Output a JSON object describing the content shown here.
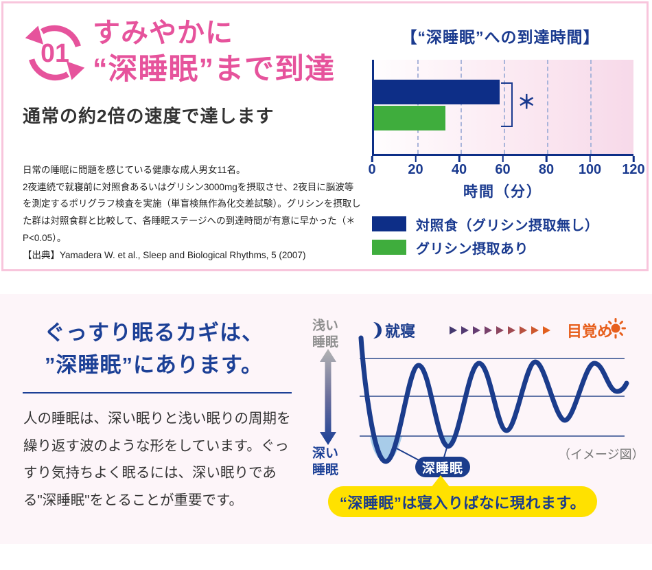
{
  "colors": {
    "pink": "#e6539c",
    "pink_border": "#f8c5dc",
    "navy": "#1a3a8f",
    "bar_navy": "#0d2e87",
    "wave_navy": "#1b3c8c",
    "green": "#3fad3d",
    "orange": "#e75f1d",
    "yellow": "#ffe100",
    "band_bg": "#fdf5f9",
    "grid": "#a9b4da",
    "light_blue": "#a8cce9",
    "gray_label": "#8f8f8f"
  },
  "top_section": {
    "step_number": "01",
    "heading_line1": "すみやかに",
    "heading_line2": "“深睡眠”まで到達",
    "subheading": "通常の約2倍の速度で達します",
    "study_note": "日常の睡眠に問題を感じている健康な成人男女11名。\n2夜連続で就寝前に対照食あるいはグリシン3000mgを摂取させ、2夜目に脳波等を測定するポリグラフ検査を実施（単盲検無作為化交差試験）。グリシンを摂取した群は対照食群と比較して、各睡眠ステージへの到達時間が有意に早かった（＊P<0.05）。\n【出典】Yamadera W. et al., Sleep and Biological Rhythms, 5 (2007)"
  },
  "chart_data": {
    "type": "bar",
    "orientation": "horizontal",
    "title": "【“深睡眠”への到達時間】",
    "xlabel": "時間（分）",
    "xlim": [
      0,
      120
    ],
    "xticks": [
      0,
      20,
      40,
      60,
      80,
      100,
      120
    ],
    "grid": "dashed-vertical",
    "series": [
      {
        "name": "対照食（グリシン摂取無し）",
        "value": 58,
        "color": "#0d2e87"
      },
      {
        "name": "グリシン摂取あり",
        "value": 33,
        "color": "#3fad3d"
      }
    ],
    "significance": "＊",
    "legend_position": "below"
  },
  "bottom_section": {
    "heading_line1": "ぐっすり眠るカギは、",
    "heading_line2": "”深睡眠”にあります。",
    "body": "人の睡眠は、深い眠りと浅い眠りの周期を繰り返す波のような形をしています。ぐっすり気持ちよく眠るには、深い眠りである\"深睡眠\"をとることが重要です。",
    "diagram": {
      "shallow_label": "浅い\n睡眠",
      "deep_label": "深い\n睡眠",
      "start_label": "就寝",
      "end_label": "目覚め",
      "moon_icon": "crescent-moon",
      "sun_icon": "sun",
      "arrow_colors": [
        "#44386f",
        "#533a72",
        "#653d72",
        "#78406b",
        "#8c4560",
        "#a14a52",
        "#b85140",
        "#ce582e",
        "#e25f1e"
      ],
      "deep_sleep_badge": "深睡眠",
      "image_note": "（イメージ図）",
      "callout": "“深睡眠”は寝入りばなに現れます。"
    }
  }
}
